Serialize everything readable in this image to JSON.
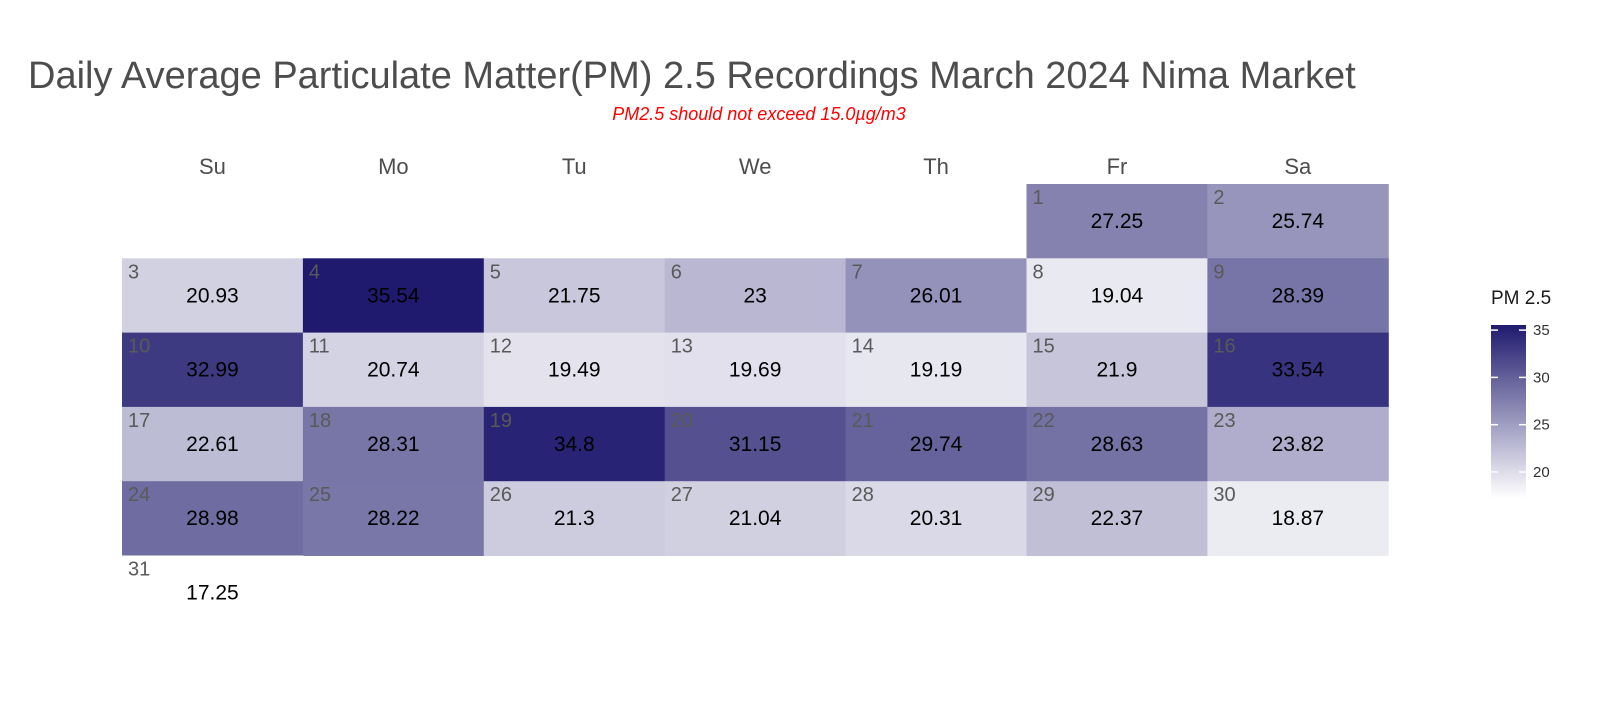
{
  "chart_data": {
    "type": "heatmap",
    "title": "Daily Average Particulate Matter(PM) 2.5 Recordings March 2024 Nima Market",
    "subtitle": "PM2.5 should not exceed 15.0µg/m3",
    "weekdays": [
      "Su",
      "Mo",
      "Tu",
      "We",
      "Th",
      "Fr",
      "Sa"
    ],
    "first_weekday_index": 5,
    "days": [
      {
        "day": "1",
        "value": 27.25
      },
      {
        "day": "2",
        "value": 25.74
      },
      {
        "day": "3",
        "value": 20.93
      },
      {
        "day": "4",
        "value": 35.54
      },
      {
        "day": "5",
        "value": 21.75
      },
      {
        "day": "6",
        "value": 23
      },
      {
        "day": "7",
        "value": 26.01
      },
      {
        "day": "8",
        "value": 19.04
      },
      {
        "day": "9",
        "value": 28.39
      },
      {
        "day": "10",
        "value": 32.99
      },
      {
        "day": "11",
        "value": 20.74
      },
      {
        "day": "12",
        "value": 19.49
      },
      {
        "day": "13",
        "value": 19.69
      },
      {
        "day": "14",
        "value": 19.19
      },
      {
        "day": "15",
        "value": 21.9
      },
      {
        "day": "16",
        "value": 33.54
      },
      {
        "day": "17",
        "value": 22.61
      },
      {
        "day": "18",
        "value": 28.31
      },
      {
        "day": "19",
        "value": 34.8
      },
      {
        "day": "20",
        "value": 31.15
      },
      {
        "day": "21",
        "value": 29.74
      },
      {
        "day": "22",
        "value": 28.63
      },
      {
        "day": "23",
        "value": 23.82
      },
      {
        "day": "24",
        "value": 28.98
      },
      {
        "day": "25",
        "value": 28.22
      },
      {
        "day": "26",
        "value": 21.3
      },
      {
        "day": "27",
        "value": 21.04
      },
      {
        "day": "28",
        "value": 20.31
      },
      {
        "day": "29",
        "value": 22.37
      },
      {
        "day": "30",
        "value": 18.87
      },
      {
        "day": "31",
        "value": 17.25
      }
    ],
    "legend": {
      "title": "PM 2.5",
      "ticks": [
        20,
        25,
        30,
        35
      ],
      "range": [
        17.25,
        35.54
      ],
      "low_color": "#ffffff",
      "high_color": "#1f1a6e",
      "placement": "right"
    }
  }
}
